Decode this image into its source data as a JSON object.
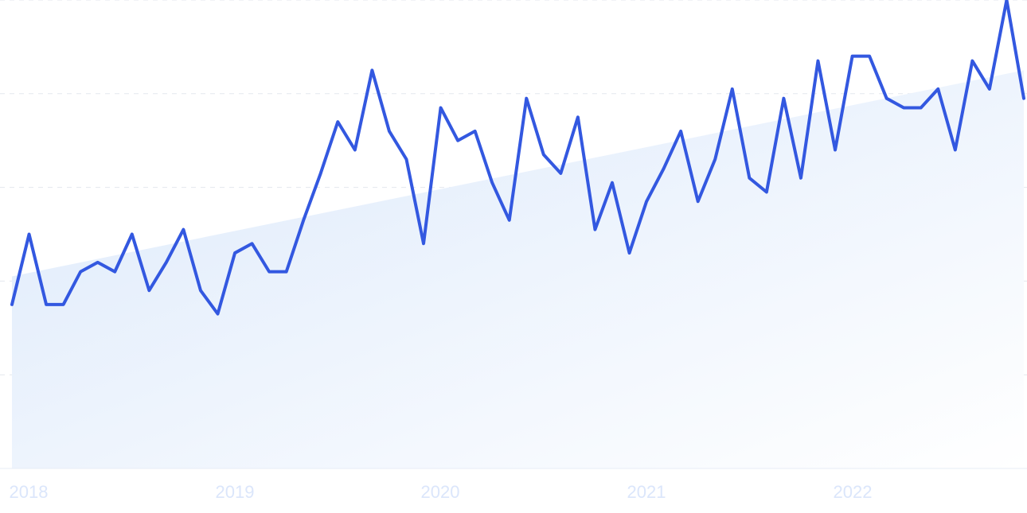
{
  "chart_data": {
    "type": "area",
    "title": "",
    "xlabel": "",
    "ylabel": "",
    "x_tick_labels": [
      "2018",
      "2019",
      "2020",
      "2021",
      "2022"
    ],
    "ylim": [
      0,
      100
    ],
    "grid": "horizontal dashed",
    "legend": "none",
    "colors": {
      "line": "#3358e0",
      "trend_fill_top": "#dce9fb",
      "trend_fill_bottom": "#ffffff",
      "gridline": "#e3e7ee",
      "axis": "#e7ecf6",
      "tick_label": "#dbe6fb"
    },
    "series": [
      {
        "type": "line",
        "values": [
          35,
          50,
          35,
          35,
          42,
          44,
          42,
          50,
          38,
          44,
          51,
          38,
          33,
          46,
          48,
          42,
          42,
          53,
          63,
          74,
          68,
          85,
          72,
          66,
          48,
          77,
          70,
          72,
          61,
          53,
          79,
          67,
          63,
          75,
          51,
          61,
          46,
          57,
          64,
          72,
          57,
          66,
          81,
          62,
          59,
          79,
          62,
          87,
          68,
          88,
          88,
          79,
          77,
          77,
          81,
          68,
          87,
          81,
          100,
          79
        ]
      },
      {
        "type": "trend_area",
        "values": [
          41,
          85
        ]
      }
    ]
  }
}
